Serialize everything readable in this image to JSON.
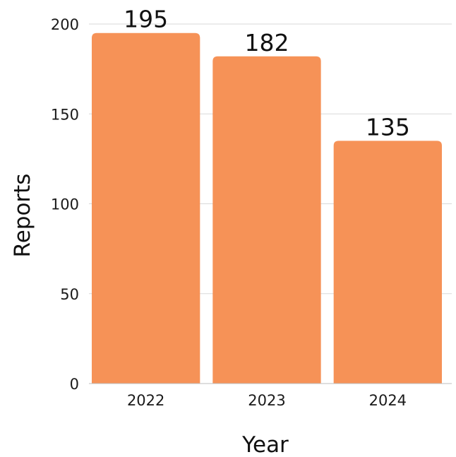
{
  "chart_data": {
    "type": "bar",
    "categories": [
      "2022",
      "2023",
      "2024"
    ],
    "values": [
      195,
      182,
      135
    ],
    "xlabel": "Year",
    "ylabel": "Reports",
    "ylim": [
      0,
      200
    ],
    "yticks": [
      0,
      50,
      100,
      150,
      200
    ],
    "grid": true,
    "legend": "none",
    "colors": {
      "bar": "#F69257",
      "grid": "#D9D9D9",
      "text": "#111111"
    }
  }
}
